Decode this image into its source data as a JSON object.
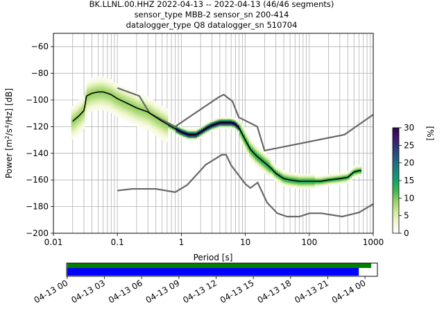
{
  "title": {
    "line1": "BK.LLNL.00.HHZ   2022-04-13 -- 2022-04-13  (46/46 segments)",
    "line2": "sensor_type MBB-2 sensor_sn 200-414",
    "line3": "datalogger_type Q8 datalogger_sn 510704"
  },
  "chart_data": [
    {
      "type": "heatmap",
      "xlabel": "Period [s]",
      "ylabel_parts": {
        "pre": "Power [m",
        "sup1": "2",
        "mid": "/s",
        "sup2": "4",
        "post": "/Hz] [dB]"
      },
      "xscale": "log",
      "xlim": [
        0.01,
        1000
      ],
      "ylim": [
        -200,
        -50
      ],
      "xticks": [
        {
          "value": 0.01,
          "label": "0.01"
        },
        {
          "value": 0.1,
          "label": "0.1"
        },
        {
          "value": 1,
          "label": "1"
        },
        {
          "value": 10,
          "label": "10"
        },
        {
          "value": 100,
          "label": "100"
        },
        {
          "value": 1000,
          "label": "1000"
        }
      ],
      "yticks": [
        {
          "value": -60,
          "label": "−60"
        },
        {
          "value": -80,
          "label": "−80"
        },
        {
          "value": -100,
          "label": "−100"
        },
        {
          "value": -120,
          "label": "−120"
        },
        {
          "value": -140,
          "label": "−140"
        },
        {
          "value": -160,
          "label": "−160"
        },
        {
          "value": -180,
          "label": "−180"
        },
        {
          "value": -200,
          "label": "−200"
        }
      ],
      "grid": true,
      "mode_curve": [
        [
          0.02,
          -116
        ],
        [
          0.025,
          -112
        ],
        [
          0.03,
          -108
        ],
        [
          0.033,
          -97
        ],
        [
          0.04,
          -95
        ],
        [
          0.05,
          -94
        ],
        [
          0.06,
          -94
        ],
        [
          0.07,
          -95
        ],
        [
          0.08,
          -96
        ],
        [
          0.1,
          -99
        ],
        [
          0.15,
          -103
        ],
        [
          0.2,
          -106
        ],
        [
          0.3,
          -109
        ],
        [
          0.4,
          -113
        ],
        [
          0.5,
          -116
        ],
        [
          0.7,
          -120
        ],
        [
          1.0,
          -124
        ],
        [
          1.3,
          -126
        ],
        [
          1.7,
          -126
        ],
        [
          2.0,
          -124
        ],
        [
          2.5,
          -121
        ],
        [
          3.0,
          -119
        ],
        [
          4.0,
          -117
        ],
        [
          5.0,
          -117
        ],
        [
          6.0,
          -117
        ],
        [
          7.0,
          -118
        ],
        [
          8.0,
          -121
        ],
        [
          10,
          -130
        ],
        [
          12,
          -137
        ],
        [
          15,
          -142
        ],
        [
          20,
          -147
        ],
        [
          25,
          -151
        ],
        [
          30,
          -155
        ],
        [
          40,
          -159
        ],
        [
          50,
          -160
        ],
        [
          70,
          -161
        ],
        [
          100,
          -161
        ],
        [
          150,
          -161
        ],
        [
          200,
          -160
        ],
        [
          300,
          -159
        ],
        [
          400,
          -158
        ],
        [
          500,
          -154
        ],
        [
          600,
          -153
        ],
        [
          650,
          -153
        ]
      ],
      "nhnm": [
        [
          0.1,
          -91
        ],
        [
          0.22,
          -97
        ],
        [
          0.32,
          -110
        ],
        [
          0.8,
          -120
        ],
        [
          3.8,
          -98
        ],
        [
          4.6,
          -96
        ],
        [
          6.3,
          -101
        ],
        [
          7.9,
          -113
        ],
        [
          15.4,
          -120
        ],
        [
          20,
          -138
        ],
        [
          354.8,
          -126
        ],
        [
          1000,
          -111
        ]
      ],
      "nlnm": [
        [
          0.1,
          -168
        ],
        [
          0.17,
          -166.7
        ],
        [
          0.4,
          -166.7
        ],
        [
          0.8,
          -169.2
        ],
        [
          1.24,
          -163.7
        ],
        [
          2.4,
          -148.6
        ],
        [
          4.3,
          -141.1
        ],
        [
          5.0,
          -141.1
        ],
        [
          6.0,
          -149
        ],
        [
          10,
          -163
        ],
        [
          12,
          -166
        ],
        [
          15.6,
          -162
        ],
        [
          21.9,
          -177
        ],
        [
          31.6,
          -185
        ],
        [
          45,
          -187.5
        ],
        [
          70,
          -187.5
        ],
        [
          101,
          -185
        ],
        [
          154,
          -185
        ],
        [
          328,
          -187.5
        ],
        [
          600,
          -184.4
        ],
        [
          1000,
          -178
        ]
      ],
      "colorbar": {
        "label": "[%]",
        "range": [
          0,
          30
        ],
        "ticks": [
          {
            "value": 0,
            "label": "0"
          },
          {
            "value": 5,
            "label": "5"
          },
          {
            "value": 10,
            "label": "10"
          },
          {
            "value": 15,
            "label": "15"
          },
          {
            "value": 20,
            "label": "20"
          },
          {
            "value": 25,
            "label": "25"
          },
          {
            "value": 30,
            "label": "30"
          }
        ],
        "colors": [
          "#ffffff",
          "#f3f8d9",
          "#d3eaa0",
          "#9bd36b",
          "#3fb94d",
          "#15a26b",
          "#18837c",
          "#21627f",
          "#2c3d7c",
          "#40176e",
          "#2c0a4a"
        ]
      }
    },
    {
      "type": "timeline",
      "x_range_hours": [
        -0.05,
        25.0
      ],
      "xticks": [
        {
          "value": 0,
          "label": "04-13 00"
        },
        {
          "value": 3,
          "label": "04-13 03"
        },
        {
          "value": 6,
          "label": "04-13 06"
        },
        {
          "value": 9,
          "label": "04-13 09"
        },
        {
          "value": 12,
          "label": "04-13 12"
        },
        {
          "value": 15,
          "label": "04-13 15"
        },
        {
          "value": 18,
          "label": "04-13 18"
        },
        {
          "value": 21,
          "label": "04-13 21"
        },
        {
          "value": 24,
          "label": "04-14 00"
        }
      ],
      "bars": [
        {
          "start": 0,
          "end": 24.5,
          "color": "#008000"
        },
        {
          "start": 0,
          "end": 23.5,
          "color": "#0000ff"
        }
      ]
    }
  ]
}
